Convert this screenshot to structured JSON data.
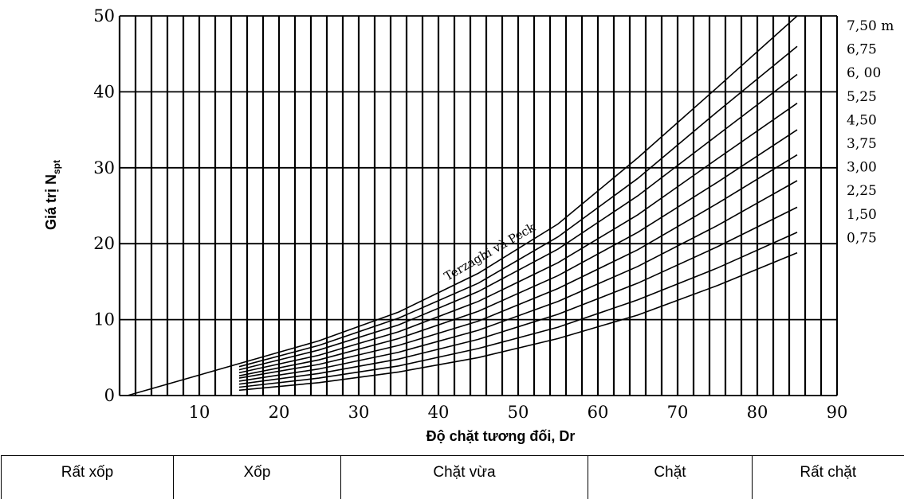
{
  "chart_data": {
    "type": "line",
    "title": "",
    "xlabel": "Độ chặt tương đối, Dr",
    "ylabel": "Giá trị N",
    "ylabel_sub": "spt",
    "xlim": [
      0,
      90
    ],
    "ylim": [
      0,
      50
    ],
    "x_ticks": [
      "10",
      "20",
      "30",
      "40",
      "50",
      "60",
      "70",
      "80",
      "90"
    ],
    "y_ticks": [
      "0",
      "10",
      "20",
      "30",
      "40",
      "50"
    ],
    "grid": "dense vertical lines every 2, horizontal lines every 10",
    "annotation": "Terzaghi và Peck",
    "series": [
      {
        "name": "7,50 m",
        "x": [
          1,
          15,
          25,
          35,
          45,
          55,
          65,
          75,
          85
        ],
        "y": [
          0,
          4.2,
          7.2,
          11.0,
          16.1,
          22.6,
          31.3,
          40.6,
          50.0
        ]
      },
      {
        "name": "6,75",
        "x": [
          15,
          25,
          35,
          45,
          55,
          65,
          75,
          85
        ],
        "y": [
          3.8,
          6.6,
          10.2,
          14.8,
          20.9,
          28.6,
          37.4,
          46.0
        ]
      },
      {
        "name": "6, 00",
        "x": [
          15,
          25,
          35,
          45,
          55,
          65,
          75,
          85
        ],
        "y": [
          3.4,
          6.0,
          9.3,
          13.7,
          19.3,
          26.3,
          34.3,
          42.3
        ]
      },
      {
        "name": "5,25",
        "x": [
          15,
          25,
          35,
          45,
          55,
          65,
          75,
          85
        ],
        "y": [
          3.0,
          5.3,
          8.4,
          12.4,
          17.5,
          23.8,
          31.2,
          38.5
        ]
      },
      {
        "name": "4,50",
        "x": [
          15,
          25,
          35,
          45,
          55,
          65,
          75,
          85
        ],
        "y": [
          2.6,
          4.7,
          7.5,
          11.1,
          15.8,
          21.5,
          28.1,
          35.0
        ]
      },
      {
        "name": "3,75",
        "x": [
          15,
          25,
          35,
          45,
          55,
          65,
          75,
          85
        ],
        "y": [
          2.3,
          4.1,
          6.6,
          9.8,
          14.1,
          19.2,
          25.3,
          31.7
        ]
      },
      {
        "name": "3,00",
        "x": [
          15,
          25,
          35,
          45,
          55,
          65,
          75,
          85
        ],
        "y": [
          1.9,
          3.5,
          5.7,
          8.6,
          12.4,
          17.0,
          22.4,
          28.3
        ]
      },
      {
        "name": "2,25",
        "x": [
          15,
          25,
          35,
          45,
          55,
          65,
          75,
          85
        ],
        "y": [
          1.5,
          2.9,
          4.8,
          7.4,
          10.7,
          14.8,
          19.6,
          24.8
        ]
      },
      {
        "name": "1,50",
        "x": [
          15,
          25,
          35,
          45,
          55,
          65,
          75,
          85
        ],
        "y": [
          1.1,
          2.3,
          3.9,
          6.2,
          9.0,
          12.6,
          16.8,
          21.5
        ]
      },
      {
        "name": "0,75",
        "x": [
          15,
          25,
          35,
          45,
          55,
          65,
          75,
          85
        ],
        "y": [
          0.7,
          1.7,
          3.1,
          5.0,
          7.5,
          10.6,
          14.5,
          18.8
        ]
      }
    ]
  },
  "density_table": {
    "cells": [
      "Rất xốp",
      "Xốp",
      "Chặt vừa",
      "Chặt",
      "Rất chặt"
    ]
  }
}
